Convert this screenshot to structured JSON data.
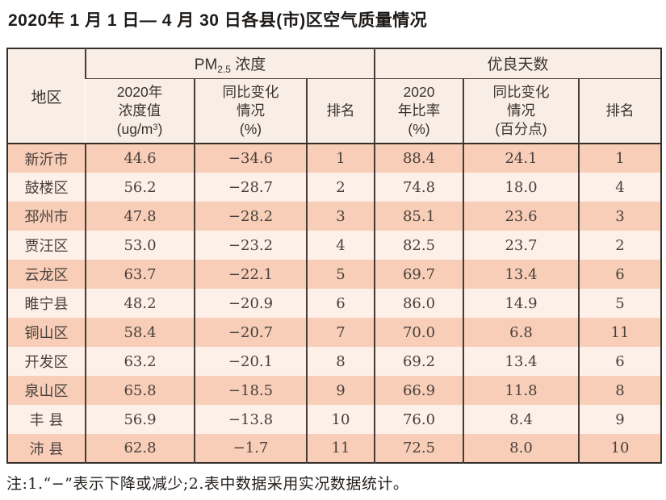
{
  "title": "2020年 1 月 1 日— 4 月 30 日各县(市)区空气质量情况",
  "table": {
    "corner_header": "地区",
    "groups": [
      {
        "prefix": "PM",
        "subscript": "2.5",
        "suffix": " 浓度"
      },
      {
        "label": "优良天数"
      }
    ],
    "subheaders": {
      "pm_value": {
        "line1": "2020年",
        "line2": "浓度值",
        "line3_pre": "(ug/m",
        "line3_sup": "3",
        "line3_post": ")"
      },
      "pm_change": {
        "line1": "同比变化",
        "line2": "情况",
        "line3": "(%)"
      },
      "pm_rank": "排名",
      "good_ratio": {
        "line1": "2020",
        "line2": "年比率",
        "line3": "(%)"
      },
      "good_change": {
        "line1": "同比变化",
        "line2": "情况",
        "line3": "(百分点)"
      },
      "good_rank": "排名"
    },
    "rows": [
      {
        "region": "新沂市",
        "pm_value": "44.6",
        "pm_change": "−34.6",
        "pm_rank": "1",
        "ratio": "88.4",
        "ratio_change": "24.1",
        "ratio_rank": "1"
      },
      {
        "region": "鼓楼区",
        "pm_value": "56.2",
        "pm_change": "−28.7",
        "pm_rank": "2",
        "ratio": "74.8",
        "ratio_change": "18.0",
        "ratio_rank": "4"
      },
      {
        "region": "邳州市",
        "pm_value": "47.8",
        "pm_change": "−28.2",
        "pm_rank": "3",
        "ratio": "85.1",
        "ratio_change": "23.6",
        "ratio_rank": "3"
      },
      {
        "region": "贾汪区",
        "pm_value": "53.0",
        "pm_change": "−23.2",
        "pm_rank": "4",
        "ratio": "82.5",
        "ratio_change": "23.7",
        "ratio_rank": "2"
      },
      {
        "region": "云龙区",
        "pm_value": "63.7",
        "pm_change": "−22.1",
        "pm_rank": "5",
        "ratio": "69.7",
        "ratio_change": "13.4",
        "ratio_rank": "6"
      },
      {
        "region": "睢宁县",
        "pm_value": "48.2",
        "pm_change": "−20.9",
        "pm_rank": "6",
        "ratio": "86.0",
        "ratio_change": "14.9",
        "ratio_rank": "5"
      },
      {
        "region": "铜山区",
        "pm_value": "58.4",
        "pm_change": "−20.7",
        "pm_rank": "7",
        "ratio": "70.0",
        "ratio_change": "6.8",
        "ratio_rank": "11"
      },
      {
        "region": "开发区",
        "pm_value": "63.2",
        "pm_change": "−20.1",
        "pm_rank": "8",
        "ratio": "69.2",
        "ratio_change": "13.4",
        "ratio_rank": "6"
      },
      {
        "region": "泉山区",
        "pm_value": "65.8",
        "pm_change": "−18.5",
        "pm_rank": "9",
        "ratio": "66.9",
        "ratio_change": "11.8",
        "ratio_rank": "8"
      },
      {
        "region": "丰 县",
        "pm_value": "56.9",
        "pm_change": "−13.8",
        "pm_rank": "10",
        "ratio": "76.0",
        "ratio_change": "8.4",
        "ratio_rank": "9"
      },
      {
        "region": "沛 县",
        "pm_value": "62.8",
        "pm_change": "−1.7",
        "pm_rank": "11",
        "ratio": "72.5",
        "ratio_change": "8.0",
        "ratio_rank": "10"
      }
    ]
  },
  "note": "注:1.“−”表示下降或减少;2.表中数据采用实况数据统计。",
  "colors": {
    "row_stripe_dark": "#f8ceb8",
    "row_stripe_light": "#fdf0e8",
    "header_bg": "#f8eee5",
    "border_dark": "#352f2b",
    "text_body": "#48403c"
  }
}
